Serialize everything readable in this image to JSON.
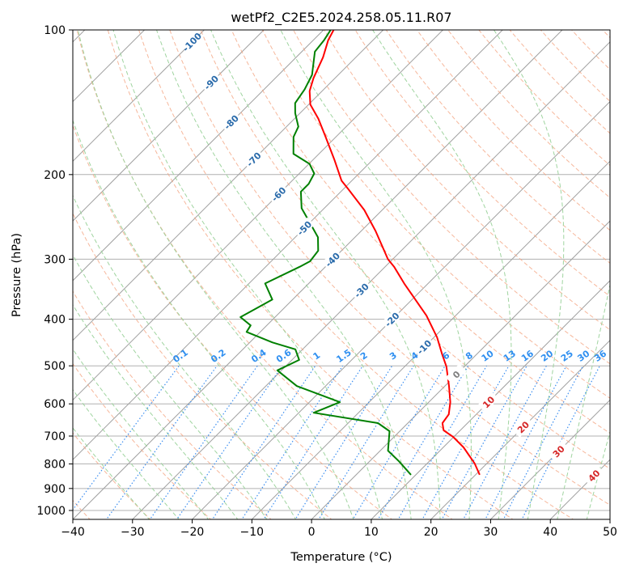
{
  "chart_data": {
    "type": "line",
    "subtype": "skew-T log-P diagram",
    "title": "wetPf2_C2E5.2024.258.05.11.R07",
    "xlabel": "Temperature (°C)",
    "ylabel": "Pressure (hPa)",
    "xlim": [
      -40,
      50
    ],
    "ylim": [
      1050,
      100
    ],
    "xticks": [
      -40,
      -30,
      -20,
      -10,
      0,
      10,
      20,
      30,
      40,
      50
    ],
    "yticks": [
      100,
      200,
      300,
      400,
      500,
      600,
      700,
      800,
      900,
      1000
    ],
    "grid": true,
    "isotherm_labels": [
      "-100",
      "-90",
      "-80",
      "-70",
      "-60",
      "-50",
      "-40",
      "-30",
      "-20",
      "-10",
      "0",
      "10",
      "20",
      "30",
      "40"
    ],
    "mixing_ratio_labels": [
      "0.1",
      "0.2",
      "0.4",
      "0.6",
      "1",
      "1.5",
      "2",
      "3",
      "4",
      "6",
      "8",
      "10",
      "13",
      "16",
      "20",
      "25",
      "30",
      "36"
    ],
    "colors": {
      "temperature": "#ff0000",
      "dewpoint": "#008000",
      "isotherm": "#a0a0a0",
      "dry_adiabat": "#f4a582",
      "moist_adiabat": "#9fd49f",
      "mixing_ratio": "#3b8ef0",
      "label_cold": "#2a6bab",
      "label_zero": "#808080",
      "label_warm": "#d62728"
    },
    "series": [
      {
        "name": "Temperature",
        "pressure": [
          100,
          105,
          114,
          126,
          134,
          143,
          153,
          166,
          186,
          206,
          214,
          237,
          262,
          300,
          311,
          337,
          393,
          436,
          472,
          502,
          551,
          595,
          631,
          658,
          681,
          703,
          739,
          799,
          843
        ],
        "values": [
          -78.3,
          -77.5,
          -75.5,
          -73.6,
          -72.1,
          -69.7,
          -66.0,
          -62.0,
          -56.5,
          -51.7,
          -49.3,
          -43.0,
          -37.6,
          -30.8,
          -28.5,
          -24.0,
          -14.9,
          -9.5,
          -5.9,
          -3.0,
          0.7,
          3.6,
          5.4,
          5.8,
          7.2,
          9.9,
          13.4,
          18.0,
          20.7
        ]
      },
      {
        "name": "Dewpoint",
        "pressure": [
          100,
          105,
          111,
          124,
          133,
          142,
          149,
          159,
          167,
          181,
          190,
          199,
          209,
          217,
          235,
          250,
          270,
          288,
          303,
          311,
          337,
          364,
          396,
          412,
          425,
          447,
          462,
          486,
          511,
          551,
          595,
          626,
          658,
          684,
          751,
          790,
          843
        ],
        "values": [
          -78.8,
          -78.2,
          -77.8,
          -74.4,
          -73.2,
          -72.5,
          -70.8,
          -68.0,
          -67.1,
          -64.3,
          -59.9,
          -57.5,
          -56.7,
          -56.7,
          -53.8,
          -50.4,
          -46.2,
          -43.9,
          -43.5,
          -44.3,
          -47.3,
          -43.4,
          -45.8,
          -42.7,
          -42.3,
          -36.2,
          -31.2,
          -28.8,
          -30.7,
          -24.8,
          -14.9,
          -17.5,
          -5.0,
          -1.7,
          1.3,
          4.9,
          9.2
        ]
      }
    ]
  }
}
